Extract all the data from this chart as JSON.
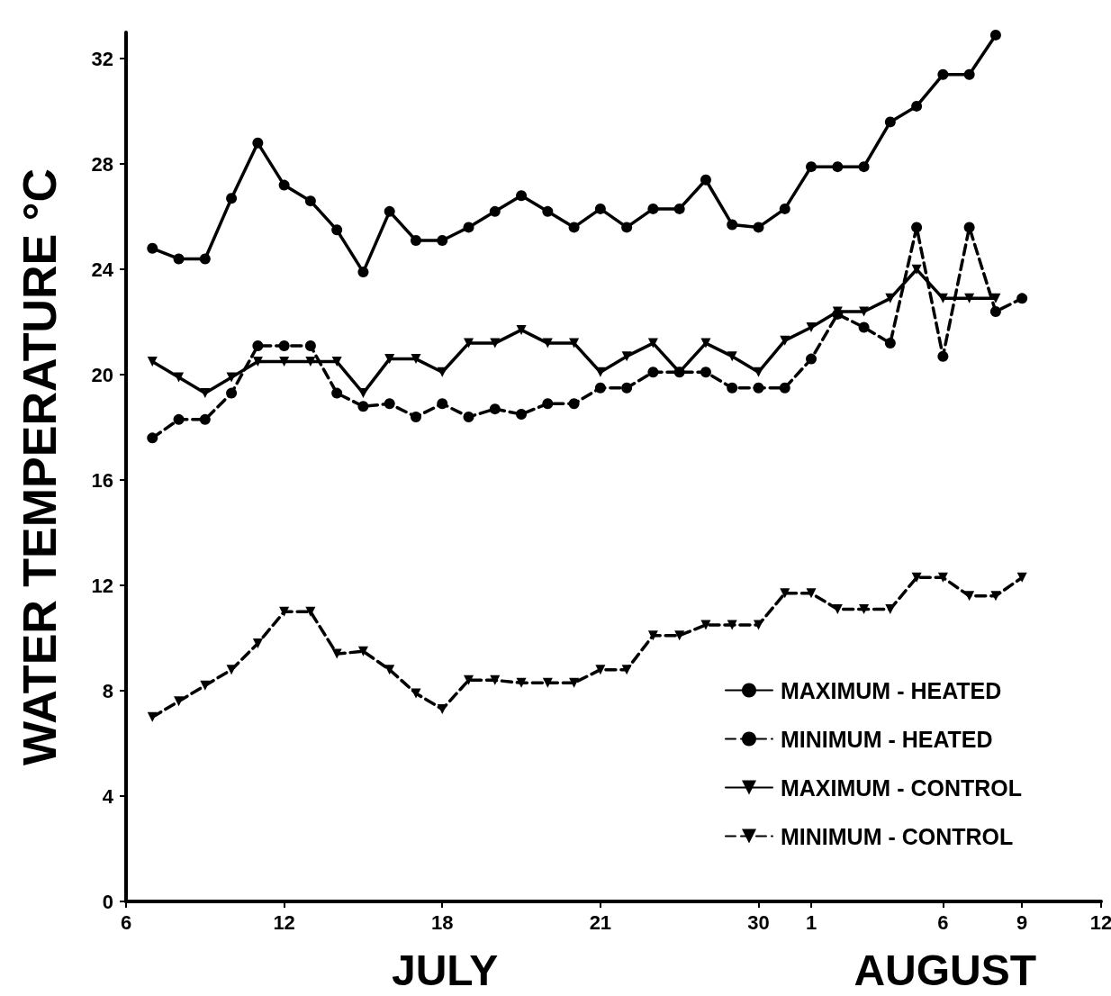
{
  "chart_data": {
    "type": "line",
    "ylabel": "WATER TEMPERATURE °C",
    "annotations": [
      "JULY",
      "AUGUST"
    ],
    "x": [
      "--07-07",
      "--07-08",
      "--07-09",
      "--07-10",
      "--07-11",
      "--07-12",
      "--07-13",
      "--07-14",
      "--07-15",
      "--07-16",
      "--07-17",
      "--07-18",
      "--07-19",
      "--07-20",
      "--07-21",
      "--07-22",
      "--07-23",
      "--07-24",
      "--07-25",
      "--07-26",
      "--07-27",
      "--07-28",
      "--07-29",
      "--07-30",
      "--07-31",
      "--08-01",
      "--08-02",
      "--08-03",
      "--08-04",
      "--08-05",
      "--08-06",
      "--08-07",
      "--08-08",
      "--08-09"
    ],
    "xlim": [
      "--07-06",
      "--08-12"
    ],
    "xticks": [
      {
        "value": "--07-06",
        "label": "6"
      },
      {
        "value": "--07-12",
        "label": "12"
      },
      {
        "value": "--07-18",
        "label": "18"
      },
      {
        "value": "--07-24",
        "label": "21"
      },
      {
        "value": "--07-30",
        "label": "30"
      },
      {
        "value": "--08-01",
        "label": "1"
      },
      {
        "value": "--08-06",
        "label": "6"
      },
      {
        "value": "--08-09",
        "label": "9"
      },
      {
        "value": "--08-12",
        "label": "12"
      }
    ],
    "ylim": [
      0,
      33
    ],
    "yticks": [
      0,
      4,
      8,
      12,
      16,
      20,
      24,
      28,
      32
    ],
    "grid": false,
    "legend": "bottom right",
    "series": [
      {
        "name": "MAXIMUM - HEATED",
        "color": "#000000",
        "marker": "circle",
        "line_style": "solid",
        "values": [
          24.8,
          24.4,
          24.4,
          26.7,
          28.8,
          27.2,
          26.6,
          25.5,
          23.9,
          26.2,
          25.1,
          25.1,
          25.6,
          26.2,
          26.8,
          26.2,
          25.6,
          26.3,
          25.6,
          26.3,
          26.3,
          27.4,
          25.7,
          25.6,
          26.3,
          27.9,
          27.9,
          27.9,
          29.6,
          30.2,
          31.4,
          31.4,
          32.9,
          null
        ]
      },
      {
        "name": "MINIMUM - HEATED",
        "color": "#000000",
        "marker": "circle",
        "line_style": "dashed",
        "values": [
          17.6,
          18.3,
          18.3,
          19.3,
          21.1,
          21.1,
          21.1,
          19.3,
          18.8,
          18.9,
          18.4,
          18.9,
          18.4,
          18.7,
          18.5,
          18.9,
          18.9,
          19.5,
          19.5,
          20.1,
          20.1,
          20.1,
          19.5,
          19.5,
          19.5,
          20.6,
          22.3,
          21.8,
          21.2,
          25.6,
          20.7,
          25.6,
          22.4,
          22.9
        ]
      },
      {
        "name": "MAXIMUM - CONTROL",
        "color": "#000000",
        "marker": "triangle",
        "line_style": "solid",
        "values": [
          20.5,
          19.9,
          19.3,
          19.9,
          20.5,
          20.5,
          20.5,
          20.5,
          19.3,
          20.6,
          20.6,
          20.1,
          21.2,
          21.2,
          21.7,
          21.2,
          21.2,
          20.1,
          20.7,
          21.2,
          20.1,
          21.2,
          20.7,
          20.1,
          21.3,
          21.8,
          22.4,
          22.4,
          22.9,
          24.0,
          22.9,
          22.9,
          22.9,
          null
        ]
      },
      {
        "name": "MINIMUM - CONTROL",
        "color": "#000000",
        "marker": "triangle",
        "line_style": "dashed",
        "values": [
          7.0,
          7.6,
          8.2,
          8.8,
          9.8,
          11.0,
          11.0,
          9.4,
          9.5,
          8.8,
          7.9,
          7.3,
          8.4,
          8.4,
          8.3,
          8.3,
          8.3,
          8.8,
          8.8,
          10.1,
          10.1,
          10.5,
          10.5,
          10.5,
          11.7,
          11.7,
          11.1,
          11.1,
          11.1,
          12.3,
          12.3,
          11.6,
          11.6,
          12.3
        ]
      }
    ]
  }
}
